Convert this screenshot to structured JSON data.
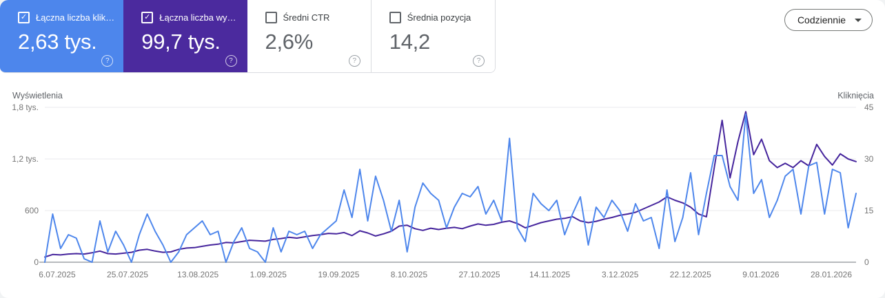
{
  "cards": [
    {
      "label": "Łączna liczba klik…",
      "value": "2,63 tys.",
      "checked": true,
      "bg": "#4d86ec"
    },
    {
      "label": "Łączna liczba wy…",
      "value": "99,7 tys.",
      "checked": true,
      "bg": "#4b2a9e"
    },
    {
      "label": "Średni CTR",
      "value": "2,6%",
      "checked": false,
      "bg": null
    },
    {
      "label": "Średnia pozycja",
      "value": "14,2",
      "checked": false,
      "bg": null
    }
  ],
  "toolbar": {
    "granularity_label": "Codziennie"
  },
  "icons": {
    "check": "✓",
    "help": "?"
  },
  "colors": {
    "clicks_line": "#4d86ec",
    "impressions_line": "#45249c",
    "gridline": "#e9eaed",
    "axis_line": "#b7babd"
  },
  "chart_data": {
    "type": "line",
    "grid": "horizontal",
    "x_tick_labels": [
      "6.07.2025",
      "25.07.2025",
      "13.08.2025",
      "1.09.2025",
      "19.09.2025",
      "8.10.2025",
      "27.10.2025",
      "14.11.2025",
      "3.12.2025",
      "22.12.2025",
      "9.01.2026",
      "28.01.2026"
    ],
    "y_axis_left": {
      "title": "Wyświetlenia",
      "ticks": [
        "1,8 tys.",
        "1,2 tys.",
        "600",
        "0"
      ],
      "tick_values": [
        1800,
        1200,
        600,
        0
      ],
      "range": [
        0,
        1800
      ]
    },
    "y_axis_right": {
      "title": "Kliknięcia",
      "ticks": [
        "45",
        "30",
        "15",
        "0"
      ],
      "tick_values": [
        45,
        30,
        15,
        0
      ],
      "range": [
        0,
        45
      ]
    },
    "series": [
      {
        "name": "Wyświetlenia",
        "axis": "left",
        "color": "#45249c",
        "values": [
          60,
          90,
          85,
          95,
          100,
          95,
          110,
          130,
          100,
          95,
          105,
          115,
          140,
          150,
          130,
          115,
          120,
          150,
          165,
          170,
          185,
          200,
          210,
          230,
          225,
          240,
          255,
          250,
          245,
          265,
          275,
          290,
          280,
          295,
          310,
          320,
          335,
          330,
          345,
          310,
          365,
          340,
          305,
          330,
          360,
          420,
          430,
          390,
          370,
          395,
          380,
          395,
          405,
          390,
          420,
          445,
          430,
          440,
          465,
          480,
          450,
          400,
          430,
          460,
          480,
          500,
          510,
          530,
          480,
          460,
          475,
          500,
          520,
          545,
          560,
          580,
          620,
          660,
          700,
          760,
          720,
          690,
          640,
          560,
          528,
          1100,
          1650,
          980,
          1400,
          1750,
          1250,
          1430,
          1180,
          1100,
          1150,
          1100,
          1180,
          1120,
          1370,
          1230,
          1130,
          1260,
          1200,
          1170
        ]
      },
      {
        "name": "Kliknięcia",
        "axis": "right",
        "color": "#4d86ec",
        "values": [
          0,
          14,
          4,
          8,
          7,
          1,
          0,
          12,
          3,
          9,
          5,
          0,
          8,
          14,
          9,
          5,
          0,
          3,
          8,
          10,
          12,
          8,
          9,
          0,
          6,
          10,
          4,
          3,
          0,
          10,
          3,
          9,
          8,
          9,
          4,
          8,
          10,
          12,
          21,
          13,
          27,
          12,
          25,
          18,
          9,
          18,
          3,
          16,
          23,
          20,
          18,
          10,
          16,
          20,
          19,
          22,
          14,
          18,
          12,
          36,
          10,
          6,
          20,
          17,
          15,
          18,
          8,
          14,
          19,
          5,
          16,
          13,
          18,
          15,
          9,
          17,
          12,
          13,
          4,
          21,
          6,
          13,
          26,
          8,
          20,
          31,
          31,
          22,
          18,
          43,
          20,
          24,
          13,
          18,
          25,
          27,
          14,
          28,
          29,
          14,
          27,
          26,
          10,
          20
        ]
      }
    ]
  }
}
